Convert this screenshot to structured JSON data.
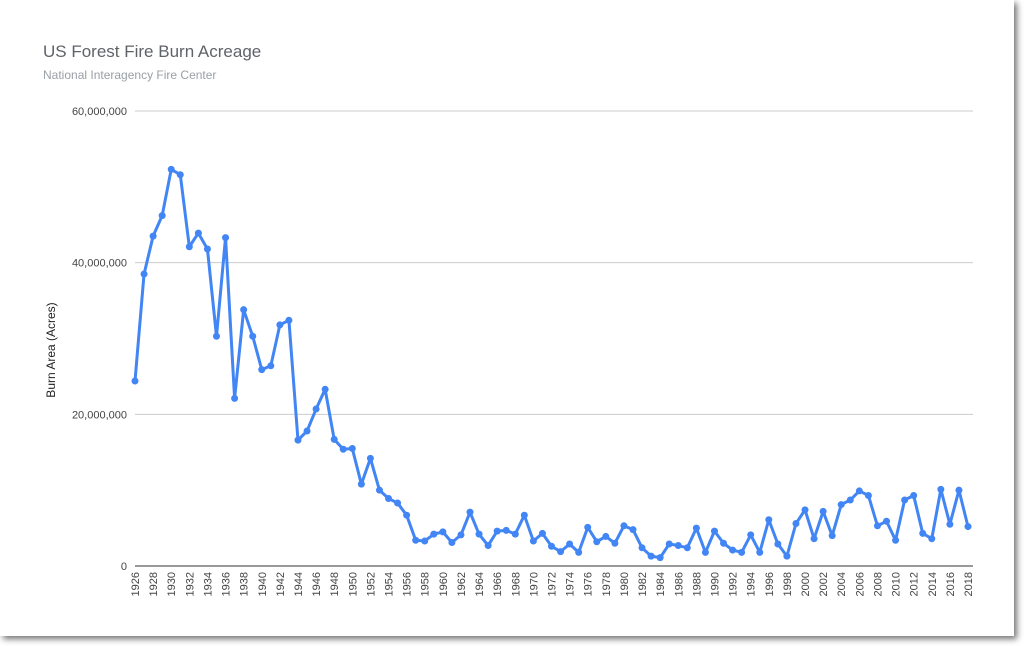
{
  "chart_data": {
    "type": "line",
    "title": "US Forest Fire Burn Acreage",
    "subtitle": "National Interagency Fire Center",
    "xlabel": "",
    "ylabel": "Burn Area (Acres)",
    "ylim": [
      0,
      60000000
    ],
    "yticks": [
      0,
      20000000,
      40000000,
      60000000
    ],
    "ytick_labels": [
      "0",
      "20,000,000",
      "40,000,000",
      "60,000,000"
    ],
    "grid": true,
    "legend": "none",
    "color": "#4285f4",
    "x": [
      1926,
      1927,
      1928,
      1929,
      1930,
      1931,
      1932,
      1933,
      1934,
      1935,
      1936,
      1937,
      1938,
      1939,
      1940,
      1941,
      1942,
      1943,
      1944,
      1945,
      1946,
      1947,
      1948,
      1949,
      1950,
      1951,
      1952,
      1953,
      1954,
      1955,
      1956,
      1957,
      1958,
      1959,
      1960,
      1961,
      1962,
      1963,
      1964,
      1965,
      1966,
      1967,
      1968,
      1969,
      1970,
      1971,
      1972,
      1973,
      1974,
      1975,
      1976,
      1977,
      1978,
      1979,
      1980,
      1981,
      1982,
      1983,
      1984,
      1985,
      1986,
      1987,
      1988,
      1989,
      1990,
      1991,
      1992,
      1993,
      1994,
      1995,
      1996,
      1997,
      1998,
      1999,
      2000,
      2001,
      2002,
      2003,
      2004,
      2005,
      2006,
      2007,
      2008,
      2009,
      2010,
      2011,
      2012,
      2013,
      2014,
      2015,
      2016,
      2017,
      2018
    ],
    "xtick_labels": [
      "1926",
      "1928",
      "1930",
      "1932",
      "1934",
      "1936",
      "1938",
      "1940",
      "1942",
      "1944",
      "1946",
      "1948",
      "1950",
      "1952",
      "1954",
      "1956",
      "1958",
      "1960",
      "1962",
      "1964",
      "1966",
      "1968",
      "1970",
      "1972",
      "1974",
      "1976",
      "1978",
      "1980",
      "1982",
      "1984",
      "1986",
      "1988",
      "1990",
      "1992",
      "1994",
      "1996",
      "1998",
      "2000",
      "2002",
      "2004",
      "2006",
      "2008",
      "2010",
      "2012",
      "2014",
      "2016",
      "2018"
    ],
    "series": [
      {
        "name": "",
        "values": [
          24400000,
          38500000,
          43500000,
          46200000,
          52300000,
          51600000,
          42100000,
          43900000,
          41800000,
          30300000,
          43300000,
          22100000,
          33800000,
          30300000,
          25900000,
          26400000,
          31800000,
          32400000,
          16600000,
          17800000,
          20700000,
          23300000,
          16700000,
          15400000,
          15500000,
          10800000,
          14200000,
          10000000,
          8900000,
          8300000,
          6700000,
          3400000,
          3300000,
          4200000,
          4500000,
          3100000,
          4100000,
          7100000,
          4200000,
          2700000,
          4600000,
          4700000,
          4200000,
          6700000,
          3300000,
          4300000,
          2600000,
          1900000,
          2900000,
          1800000,
          5100000,
          3200000,
          3900000,
          3000000,
          5300000,
          4800000,
          2400000,
          1300000,
          1100000,
          2900000,
          2700000,
          2400000,
          5000000,
          1800000,
          4600000,
          3000000,
          2100000,
          1800000,
          4100000,
          1800000,
          6100000,
          2900000,
          1300000,
          5600000,
          7400000,
          3600000,
          7200000,
          4000000,
          8100000,
          8700000,
          9900000,
          9300000,
          5300000,
          5900000,
          3400000,
          8700000,
          9300000,
          4300000,
          3600000,
          10100000,
          5500000,
          10000000,
          5200000
        ]
      }
    ]
  }
}
